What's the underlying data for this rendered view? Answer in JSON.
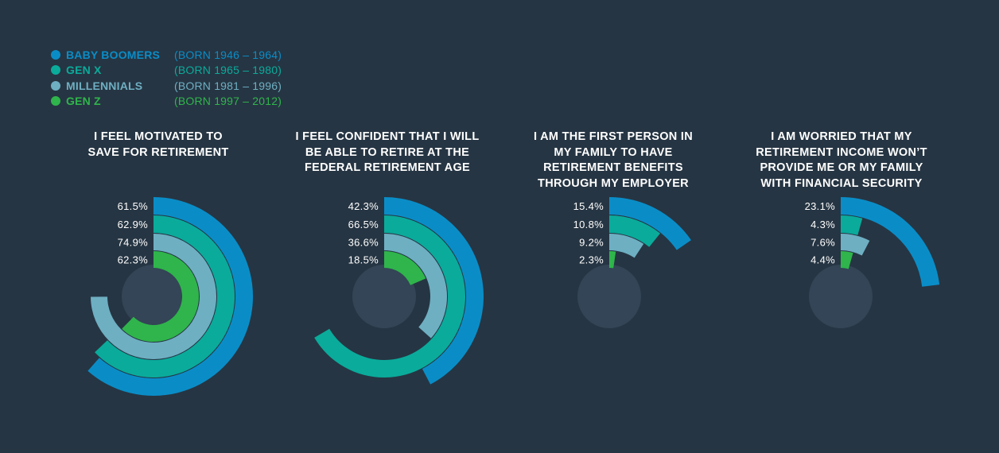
{
  "colors": {
    "background": "#263543",
    "baby_boomers": "#0a8dc7",
    "gen_x": "#0aab9b",
    "millennials": "#6eafc2",
    "gen_z": "#2fb54b",
    "hole": "#334556"
  },
  "legend": [
    {
      "name": "BABY BOOMERS",
      "born": "(BORN 1946 – 1964)",
      "color": "#0a8dc7"
    },
    {
      "name": "GEN X",
      "born": "(BORN 1965 – 1980)",
      "color": "#0aab9b"
    },
    {
      "name": "MILLENNIALS",
      "born": "(BORN 1981 – 1996)",
      "color": "#6eafc2"
    },
    {
      "name": "GEN Z",
      "born": "(BORN 1997 – 2012)",
      "color": "#2fb54b"
    }
  ],
  "chart_data": [
    {
      "type": "radial-bar",
      "title_lines": [
        "I FEEL MOTIVATED TO",
        "SAVE FOR RETIREMENT"
      ],
      "series": [
        {
          "name": "BABY BOOMERS",
          "value": 61.5,
          "label": "61.5%"
        },
        {
          "name": "GEN X",
          "value": 62.9,
          "label": "62.9%"
        },
        {
          "name": "MILLENNIALS",
          "value": 74.9,
          "label": "74.9%"
        },
        {
          "name": "GEN Z",
          "value": 62.3,
          "label": "62.3%"
        }
      ],
      "max": 100
    },
    {
      "type": "radial-bar",
      "title_lines": [
        "I FEEL CONFIDENT THAT I WILL",
        "BE ABLE TO RETIRE AT THE",
        "FEDERAL RETIREMENT AGE"
      ],
      "series": [
        {
          "name": "BABY BOOMERS",
          "value": 42.3,
          "label": "42.3%"
        },
        {
          "name": "GEN X",
          "value": 66.5,
          "label": "66.5%"
        },
        {
          "name": "MILLENNIALS",
          "value": 36.6,
          "label": "36.6%"
        },
        {
          "name": "GEN Z",
          "value": 18.5,
          "label": "18.5%"
        }
      ],
      "max": 100
    },
    {
      "type": "radial-bar",
      "title_lines": [
        "I AM THE FIRST PERSON IN",
        "MY FAMILY TO HAVE",
        "RETIREMENT BENEFITS",
        "THROUGH MY EMPLOYER"
      ],
      "series": [
        {
          "name": "BABY BOOMERS",
          "value": 15.4,
          "label": "15.4%"
        },
        {
          "name": "GEN X",
          "value": 10.8,
          "label": "10.8%"
        },
        {
          "name": "MILLENNIALS",
          "value": 9.2,
          "label": "9.2%"
        },
        {
          "name": "GEN Z",
          "value": 2.3,
          "label": "2.3%"
        }
      ],
      "max": 100
    },
    {
      "type": "radial-bar",
      "title_lines": [
        "I AM WORRIED THAT MY",
        "RETIREMENT INCOME WON’T",
        "PROVIDE ME OR MY FAMILY",
        "WITH FINANCIAL SECURITY"
      ],
      "series": [
        {
          "name": "BABY BOOMERS",
          "value": 23.1,
          "label": "23.1%"
        },
        {
          "name": "GEN X",
          "value": 4.3,
          "label": "4.3%"
        },
        {
          "name": "MILLENNIALS",
          "value": 7.6,
          "label": "7.6%"
        },
        {
          "name": "GEN Z",
          "value": 4.4,
          "label": "4.4%"
        }
      ],
      "max": 100
    }
  ]
}
